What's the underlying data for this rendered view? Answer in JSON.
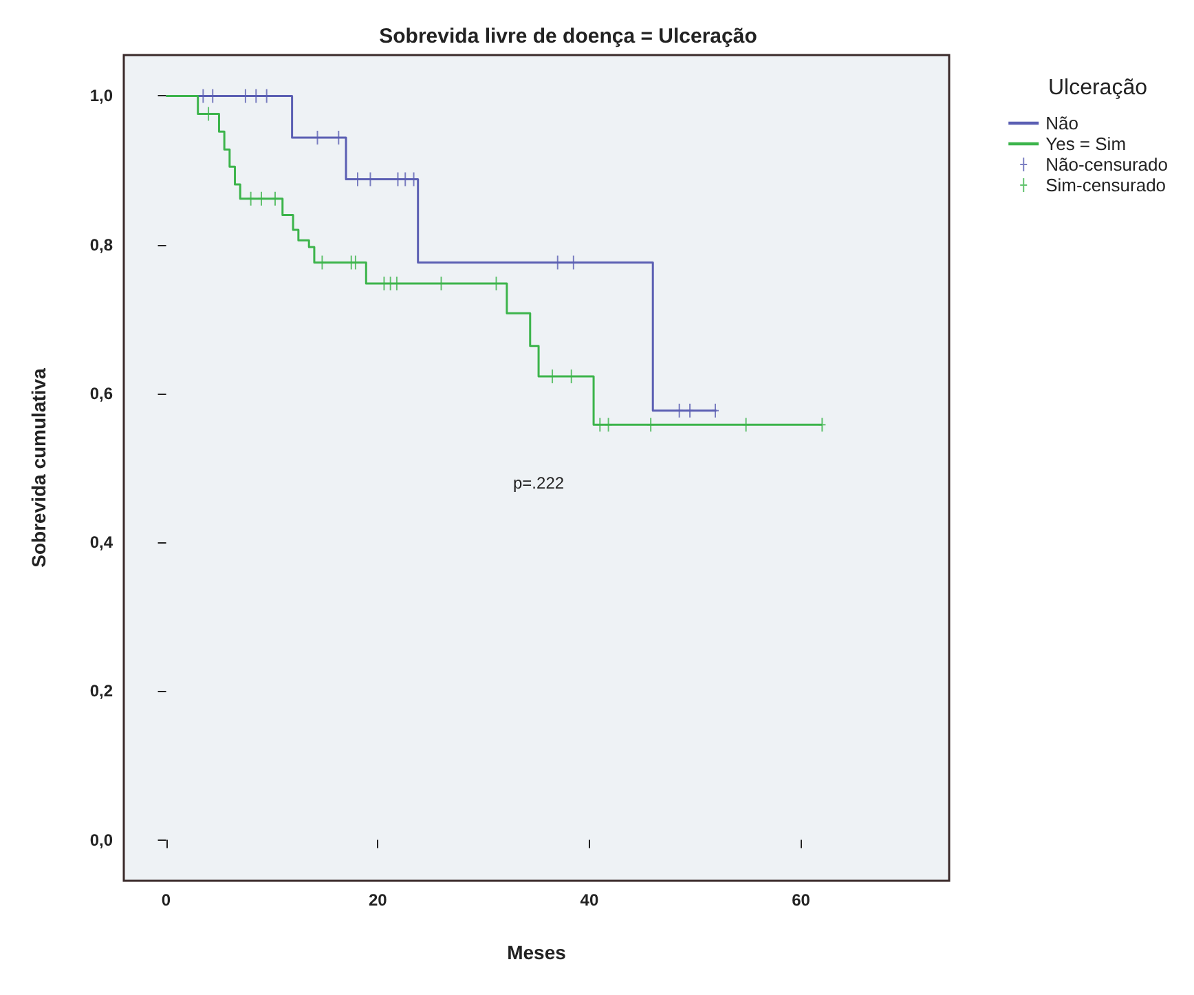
{
  "chart_data": {
    "type": "step",
    "title": "Sobrevida livre de doença = Ulceração",
    "xlabel": "Meses",
    "ylabel": "Sobrevida cumulativa",
    "legend_title": "Ulceração",
    "legend": "top right",
    "grid": false,
    "line_style": "solid",
    "xlim": [
      -4,
      74
    ],
    "xticks": [
      0,
      20,
      40,
      60
    ],
    "ylim": [
      -0.055,
      1.055
    ],
    "yticks": [
      {
        "value": 0,
        "label": "0,0"
      },
      {
        "value": 0.2,
        "label": "0,2"
      },
      {
        "value": 0.4,
        "label": "0,4"
      },
      {
        "value": 0.6,
        "label": "0,6"
      },
      {
        "value": 0.8,
        "label": "0,8"
      },
      {
        "value": 1,
        "label": "1,0"
      }
    ],
    "annotations": [
      "p=.222"
    ],
    "series": [
      {
        "name": "Não",
        "marker": "none",
        "color": "#5b5fb3",
        "x": [
          0,
          11.9,
          17,
          23.8,
          46,
          52
        ],
        "values": [
          1,
          0.944,
          0.888,
          0.776,
          0.577,
          0.577
        ]
      },
      {
        "name": "Yes = Sim",
        "marker": "none",
        "color": "#3cb44b",
        "x": [
          0,
          3,
          5,
          5.5,
          6,
          6.5,
          7,
          11,
          12,
          12.5,
          13.5,
          14,
          18.9,
          32.2,
          34.4,
          35.2,
          40.4,
          62
        ],
        "values": [
          1,
          0.976,
          0.952,
          0.928,
          0.905,
          0.881,
          0.862,
          0.84,
          0.82,
          0.806,
          0.797,
          0.776,
          0.748,
          0.708,
          0.664,
          0.623,
          0.558,
          0.558
        ]
      },
      {
        "name": "Não-censurado",
        "type": "scatter",
        "marker": "cross",
        "color": "#5b5fb3",
        "x": [
          3.5,
          4.4,
          7.5,
          8.5,
          9.5,
          14.3,
          16.3,
          18.1,
          19.3,
          21.9,
          22.6,
          23.4,
          37,
          38.5,
          48.5,
          49.5,
          51.9
        ],
        "values": [
          1,
          1,
          1,
          1,
          1,
          0.944,
          0.944,
          0.888,
          0.888,
          0.888,
          0.888,
          0.888,
          0.776,
          0.776,
          0.577,
          0.577,
          0.577
        ]
      },
      {
        "name": "Sim-censurado",
        "type": "scatter",
        "marker": "cross",
        "color": "#3cb44b",
        "x": [
          4,
          8,
          9,
          10.3,
          14.75,
          17.5,
          17.9,
          20.6,
          21.2,
          21.8,
          26,
          31.2,
          36.5,
          38.3,
          41,
          41.8,
          45.8,
          54.8,
          62
        ],
        "values": [
          0.976,
          0.862,
          0.862,
          0.862,
          0.776,
          0.776,
          0.776,
          0.748,
          0.748,
          0.748,
          0.748,
          0.748,
          0.623,
          0.623,
          0.558,
          0.558,
          0.558,
          0.558,
          0.558
        ]
      }
    ]
  }
}
